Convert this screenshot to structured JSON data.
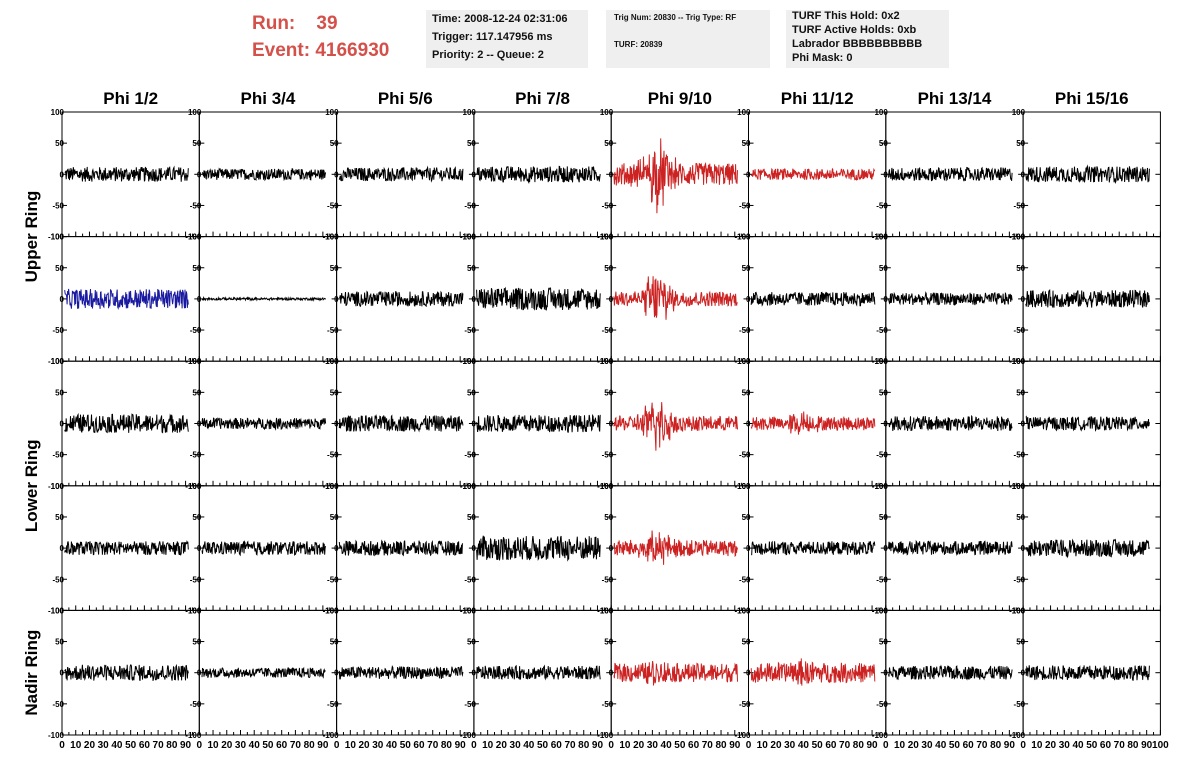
{
  "header": {
    "run_label": "Run:",
    "run_value": "39",
    "event_label": "Event:",
    "event_value": "4166930",
    "time": "Time: 2008-12-24 02:31:06",
    "trigger": "Trigger: 117.147956 ms",
    "priority": "Priority: 2 -- Queue: 2",
    "trig_num": "Trig Num: 20830 -- Trig Type: RF",
    "turf": "TURF: 20839",
    "turf_hold": "TURF This Hold: 0x2",
    "turf_active": "TURF Active Holds: 0xb",
    "labrador": "Labrador BBBBBBBBBB",
    "phi_mask": "Phi Mask: 0"
  },
  "chart_data": {
    "type": "line",
    "columns": [
      "Phi 1/2",
      "Phi 3/4",
      "Phi 5/6",
      "Phi 7/8",
      "Phi 9/10",
      "Phi 11/12",
      "Phi 13/14",
      "Phi 15/16"
    ],
    "row_groups": [
      {
        "label": "Upper Ring",
        "rows": [
          0,
          1
        ]
      },
      {
        "label": "Lower Ring",
        "rows": [
          2,
          3
        ]
      },
      {
        "label": "Nadir Ring",
        "rows": [
          4
        ]
      }
    ],
    "ylim": [
      -100,
      100
    ],
    "y_ticks": [
      -100,
      -50,
      0,
      50,
      100
    ],
    "xlim": [
      0,
      100
    ],
    "x_ticks": [
      0,
      10,
      20,
      30,
      40,
      50,
      60,
      70,
      80,
      90
    ],
    "x_ticks_last": [
      0,
      10,
      20,
      30,
      40,
      50,
      60,
      70,
      80,
      90,
      100
    ],
    "colors": {
      "normal": "#000000",
      "triggered": "#cc2222",
      "highlight": "#1a1aa0"
    },
    "panels": [
      [
        {
          "color": "normal",
          "amp": 12,
          "burst": 0
        },
        {
          "color": "normal",
          "amp": 9,
          "burst": 0
        },
        {
          "color": "normal",
          "amp": 11,
          "burst": 0
        },
        {
          "color": "normal",
          "amp": 13,
          "burst": 0
        },
        {
          "color": "triggered",
          "amp": 18,
          "burst": 48
        },
        {
          "color": "triggered",
          "amp": 9,
          "burst": 0
        },
        {
          "color": "normal",
          "amp": 11,
          "burst": 0
        },
        {
          "color": "normal",
          "amp": 13,
          "burst": 0
        }
      ],
      [
        {
          "color": "highlight",
          "amp": 16,
          "burst": 0
        },
        {
          "color": "normal",
          "amp": 2,
          "burst": 0
        },
        {
          "color": "normal",
          "amp": 12,
          "burst": 0
        },
        {
          "color": "normal",
          "amp": 18,
          "burst": 0
        },
        {
          "color": "triggered",
          "amp": 12,
          "burst": 40
        },
        {
          "color": "normal",
          "amp": 11,
          "burst": 0
        },
        {
          "color": "normal",
          "amp": 10,
          "burst": 0
        },
        {
          "color": "normal",
          "amp": 14,
          "burst": 0
        }
      ],
      [
        {
          "color": "normal",
          "amp": 15,
          "burst": 0
        },
        {
          "color": "normal",
          "amp": 9,
          "burst": 0
        },
        {
          "color": "normal",
          "amp": 13,
          "burst": 0
        },
        {
          "color": "normal",
          "amp": 14,
          "burst": 0
        },
        {
          "color": "triggered",
          "amp": 12,
          "burst": 38
        },
        {
          "color": "triggered",
          "amp": 11,
          "burst": 14
        },
        {
          "color": "normal",
          "amp": 12,
          "burst": 0
        },
        {
          "color": "normal",
          "amp": 11,
          "burst": 0
        }
      ],
      [
        {
          "color": "normal",
          "amp": 11,
          "burst": 0
        },
        {
          "color": "normal",
          "amp": 11,
          "burst": 0
        },
        {
          "color": "normal",
          "amp": 12,
          "burst": 0
        },
        {
          "color": "normal",
          "amp": 20,
          "burst": 0
        },
        {
          "color": "triggered",
          "amp": 13,
          "burst": 20
        },
        {
          "color": "normal",
          "amp": 11,
          "burst": 0
        },
        {
          "color": "normal",
          "amp": 11,
          "burst": 0
        },
        {
          "color": "normal",
          "amp": 14,
          "burst": 0
        }
      ],
      [
        {
          "color": "normal",
          "amp": 13,
          "burst": 0
        },
        {
          "color": "normal",
          "amp": 8,
          "burst": 0
        },
        {
          "color": "normal",
          "amp": 10,
          "burst": 0
        },
        {
          "color": "normal",
          "amp": 11,
          "burst": 0
        },
        {
          "color": "triggered",
          "amp": 15,
          "burst": 10
        },
        {
          "color": "triggered",
          "amp": 16,
          "burst": 10
        },
        {
          "color": "normal",
          "amp": 11,
          "burst": 0
        },
        {
          "color": "normal",
          "amp": 12,
          "burst": 0
        }
      ]
    ]
  }
}
